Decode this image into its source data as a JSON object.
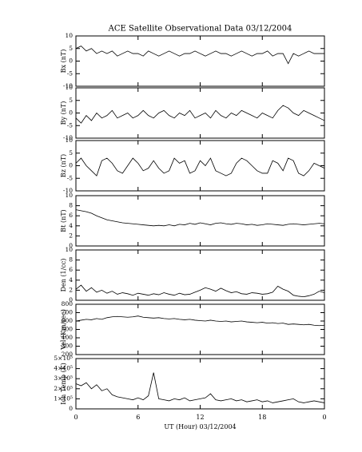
{
  "chart_data": [
    {
      "type": "line",
      "title": "ACE Satellite Observational Data   03/12/2004",
      "ylabel": "Bx (nT)",
      "color": "#000000",
      "x": [
        0,
        0.5,
        1,
        1.5,
        2,
        2.5,
        3,
        3.5,
        4,
        4.5,
        5,
        5.5,
        6,
        6.5,
        7,
        7.5,
        8,
        8.5,
        9,
        9.5,
        10,
        10.5,
        11,
        11.5,
        12,
        12.5,
        13,
        13.5,
        14,
        14.5,
        15,
        15.5,
        16,
        16.5,
        17,
        17.5,
        18,
        18.5,
        19,
        19.5,
        20,
        20.5,
        21,
        21.5,
        22,
        22.5,
        23,
        23.5,
        24
      ],
      "values": [
        5,
        6,
        4,
        5,
        3,
        4,
        3,
        4,
        2,
        3,
        4,
        3,
        3,
        2,
        4,
        3,
        2,
        3,
        4,
        3,
        2,
        3,
        3,
        4,
        3,
        2,
        3,
        4,
        3,
        3,
        2,
        3,
        4,
        3,
        2,
        3,
        3,
        4,
        2,
        3,
        3,
        -1,
        3,
        2,
        3,
        4,
        3,
        3,
        3
      ],
      "xlim": [
        0,
        24
      ],
      "xticks": [
        0,
        6,
        12,
        18,
        {
          "value": 24,
          "label": "0"
        }
      ],
      "ylim": [
        -10,
        10
      ],
      "yticks": [
        -10,
        -5,
        0,
        5,
        10
      ]
    },
    {
      "type": "line",
      "ylabel": "By (nT)",
      "color": "#000000",
      "x": [
        0,
        0.5,
        1,
        1.5,
        2,
        2.5,
        3,
        3.5,
        4,
        4.5,
        5,
        5.5,
        6,
        6.5,
        7,
        7.5,
        8,
        8.5,
        9,
        9.5,
        10,
        10.5,
        11,
        11.5,
        12,
        12.5,
        13,
        13.5,
        14,
        14.5,
        15,
        15.5,
        16,
        16.5,
        17,
        17.5,
        18,
        18.5,
        19,
        19.5,
        20,
        20.5,
        21,
        21.5,
        22,
        22.5,
        23,
        23.5,
        24
      ],
      "values": [
        -2,
        -4,
        -1,
        -3,
        0,
        -2,
        -1,
        1,
        -2,
        -1,
        0,
        -2,
        -1,
        1,
        -1,
        -2,
        0,
        1,
        -1,
        -2,
        0,
        -1,
        1,
        -2,
        -1,
        0,
        -2,
        1,
        -1,
        -2,
        0,
        -1,
        1,
        0,
        -1,
        -2,
        0,
        -1,
        -2,
        1,
        3,
        2,
        0,
        -1,
        1,
        0,
        -1,
        -2,
        -3
      ],
      "xlim": [
        0,
        24
      ],
      "xticks": [
        0,
        6,
        12,
        18,
        {
          "value": 24,
          "label": "0"
        }
      ],
      "ylim": [
        -10,
        10
      ],
      "yticks": [
        -10,
        -5,
        0,
        5,
        10
      ]
    },
    {
      "type": "line",
      "ylabel": "Bz (nT)",
      "color": "#000000",
      "x": [
        0,
        0.5,
        1,
        1.5,
        2,
        2.5,
        3,
        3.5,
        4,
        4.5,
        5,
        5.5,
        6,
        6.5,
        7,
        7.5,
        8,
        8.5,
        9,
        9.5,
        10,
        10.5,
        11,
        11.5,
        12,
        12.5,
        13,
        13.5,
        14,
        14.5,
        15,
        15.5,
        16,
        16.5,
        17,
        17.5,
        18,
        18.5,
        19,
        19.5,
        20,
        20.5,
        21,
        21.5,
        22,
        22.5,
        23,
        23.5,
        24
      ],
      "values": [
        1,
        3,
        0,
        -2,
        -4,
        2,
        3,
        1,
        -2,
        -3,
        0,
        3,
        1,
        -2,
        -1,
        2,
        -1,
        -3,
        -2,
        3,
        1,
        2,
        -3,
        -2,
        2,
        0,
        3,
        -2,
        -3,
        -4,
        -3,
        1,
        3,
        2,
        0,
        -2,
        -3,
        -3,
        2,
        1,
        -2,
        3,
        2,
        -3,
        -4,
        -2,
        1,
        0,
        -1
      ],
      "xlim": [
        0,
        24
      ],
      "xticks": [
        0,
        6,
        12,
        18,
        {
          "value": 24,
          "label": "0"
        }
      ],
      "ylim": [
        -10,
        10
      ],
      "yticks": [
        -10,
        -5,
        0,
        5,
        10
      ]
    },
    {
      "type": "line",
      "ylabel": "Bt (nT)",
      "color": "#000000",
      "x": [
        0,
        0.5,
        1,
        1.5,
        2,
        2.5,
        3,
        3.5,
        4,
        4.5,
        5,
        5.5,
        6,
        6.5,
        7,
        7.5,
        8,
        8.5,
        9,
        9.5,
        10,
        10.5,
        11,
        11.5,
        12,
        12.5,
        13,
        13.5,
        14,
        14.5,
        15,
        15.5,
        16,
        16.5,
        17,
        17.5,
        18,
        18.5,
        19,
        19.5,
        20,
        20.5,
        21,
        21.5,
        22,
        22.5,
        23,
        23.5,
        24
      ],
      "values": [
        7.2,
        7,
        6.8,
        6.5,
        6,
        5.6,
        5.2,
        5,
        4.8,
        4.6,
        4.5,
        4.4,
        4.3,
        4.2,
        4.1,
        4,
        4.1,
        4,
        4.2,
        4,
        4.3,
        4.2,
        4.5,
        4.3,
        4.6,
        4.4,
        4.2,
        4.5,
        4.6,
        4.4,
        4.3,
        4.5,
        4.4,
        4.2,
        4.3,
        4.1,
        4.2,
        4.4,
        4.3,
        4.2,
        4.1,
        4.3,
        4.4,
        4.3,
        4.2,
        4.3,
        4.4,
        4.5,
        4.4
      ],
      "xlim": [
        0,
        24
      ],
      "xticks": [
        0,
        6,
        12,
        18,
        {
          "value": 24,
          "label": "0"
        }
      ],
      "ylim": [
        0,
        10
      ],
      "yticks": [
        0,
        2,
        4,
        6,
        8,
        10
      ]
    },
    {
      "type": "line",
      "ylabel": "Den (1/cc)",
      "color": "#000000",
      "x": [
        0,
        0.5,
        1,
        1.5,
        2,
        2.5,
        3,
        3.5,
        4,
        4.5,
        5,
        5.5,
        6,
        6.5,
        7,
        7.5,
        8,
        8.5,
        9,
        9.5,
        10,
        10.5,
        11,
        11.5,
        12,
        12.5,
        13,
        13.5,
        14,
        14.5,
        15,
        15.5,
        16,
        16.5,
        17,
        17.5,
        18,
        18.5,
        19,
        19.5,
        20,
        20.5,
        21,
        21.5,
        22,
        22.5,
        23,
        23.5,
        24
      ],
      "values": [
        2.2,
        3,
        1.8,
        2.5,
        1.6,
        2,
        1.4,
        1.8,
        1.2,
        1.5,
        1.3,
        1,
        1.4,
        1.2,
        1,
        1.3,
        1.1,
        1.5,
        1.2,
        1,
        1.4,
        1.1,
        1.2,
        1.6,
        2,
        2.5,
        2.2,
        1.8,
        2.4,
        1.9,
        1.5,
        1.7,
        1.3,
        1.2,
        1.5,
        1.4,
        1.2,
        1.3,
        1.6,
        2.8,
        2.2,
        1.8,
        1,
        0.8,
        0.7,
        0.9,
        1.2,
        1.8,
        1.5
      ],
      "xlim": [
        0,
        24
      ],
      "xticks": [
        0,
        6,
        12,
        18,
        {
          "value": 24,
          "label": "0"
        }
      ],
      "ylim": [
        0,
        10
      ],
      "yticks": [
        0,
        2,
        4,
        6,
        8,
        10
      ]
    },
    {
      "type": "line",
      "ylabel": "Vel (Km/sec)",
      "color": "#000000",
      "x": [
        0,
        0.5,
        1,
        1.5,
        2,
        2.5,
        3,
        3.5,
        4,
        4.5,
        5,
        5.5,
        6,
        6.5,
        7,
        7.5,
        8,
        8.5,
        9,
        9.5,
        10,
        10.5,
        11,
        11.5,
        12,
        12.5,
        13,
        13.5,
        14,
        14.5,
        15,
        15.5,
        16,
        16.5,
        17,
        17.5,
        18,
        18.5,
        19,
        19.5,
        20,
        20.5,
        21,
        21.5,
        22,
        22.5,
        23,
        23.5,
        24
      ],
      "values": [
        600,
        610,
        620,
        615,
        630,
        620,
        640,
        650,
        655,
        650,
        645,
        650,
        660,
        645,
        640,
        635,
        640,
        630,
        625,
        630,
        620,
        615,
        620,
        610,
        605,
        600,
        610,
        600,
        595,
        600,
        590,
        595,
        600,
        590,
        585,
        580,
        585,
        575,
        580,
        570,
        575,
        560,
        565,
        560,
        555,
        560,
        550,
        545,
        550
      ],
      "xlim": [
        0,
        24
      ],
      "xticks": [
        0,
        6,
        12,
        18,
        {
          "value": 24,
          "label": "0"
        }
      ],
      "ylim": [
        200,
        800
      ],
      "yticks": [
        200,
        300,
        400,
        500,
        600,
        700,
        800
      ]
    },
    {
      "type": "line",
      "ylabel": "Ion Temp (K)",
      "xlabel": "UT (Hour)   03/12/2004",
      "color": "#000000",
      "x": [
        0,
        0.5,
        1,
        1.5,
        2,
        2.5,
        3,
        3.5,
        4,
        4.5,
        5,
        5.5,
        6,
        6.5,
        7,
        7.5,
        8,
        8.5,
        9,
        9.5,
        10,
        10.5,
        11,
        11.5,
        12,
        12.5,
        13,
        13.5,
        14,
        14.5,
        15,
        15.5,
        16,
        16.5,
        17,
        17.5,
        18,
        18.5,
        19,
        19.5,
        20,
        20.5,
        21,
        21.5,
        22,
        22.5,
        23,
        23.5,
        24
      ],
      "values": [
        250000,
        230000,
        260000,
        200000,
        240000,
        180000,
        200000,
        140000,
        120000,
        110000,
        100000,
        90000,
        110000,
        90000,
        130000,
        360000,
        100000,
        90000,
        80000,
        100000,
        90000,
        110000,
        80000,
        90000,
        100000,
        110000,
        150000,
        90000,
        80000,
        90000,
        100000,
        80000,
        90000,
        70000,
        80000,
        90000,
        70000,
        80000,
        60000,
        70000,
        80000,
        90000,
        100000,
        70000,
        60000,
        70000,
        80000,
        70000,
        60000
      ],
      "xlim": [
        0,
        24
      ],
      "xticks": [
        0,
        6,
        12,
        18,
        {
          "value": 24,
          "label": "0"
        }
      ],
      "ylim": [
        0,
        500000
      ],
      "yticks": [
        0,
        {
          "value": 100000,
          "label": "1×10⁵"
        },
        {
          "value": 200000,
          "label": "2×10⁵"
        },
        {
          "value": 300000,
          "label": "3×10⁵"
        },
        {
          "value": 400000,
          "label": "4×10⁵"
        },
        {
          "value": 500000,
          "label": "5×10⁵"
        }
      ]
    }
  ]
}
